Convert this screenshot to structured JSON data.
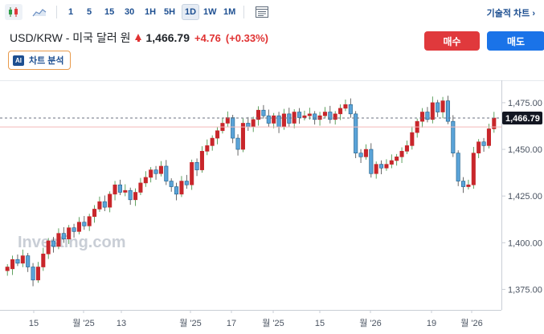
{
  "toolbar": {
    "icons": [
      "candlestick-chart-icon",
      "area-chart-icon",
      "indicators-panel-icon"
    ],
    "intervals": [
      "1",
      "5",
      "15",
      "30",
      "1H",
      "5H",
      "1D",
      "1W",
      "1M"
    ],
    "active_interval": "1D",
    "tech_chart_label": "기술적 차트 ›"
  },
  "header": {
    "pair": "USD/KRW - 미국 달러 원",
    "price": "1,466.79",
    "change": "+4.76",
    "change_pct": "(+0.33%)",
    "change_direction_icon": "up-arrow-icon"
  },
  "actions": {
    "buy_label": "매수",
    "sell_label": "매도"
  },
  "analysis": {
    "badge": "AI",
    "label": "차트 분석"
  },
  "colors": {
    "up": "#d42a2a",
    "down": "#1d5f8a",
    "accent": "#1a73e8",
    "buy": "#e0393c",
    "price_tag": "#131722"
  },
  "watermark": "Investing.com",
  "chart_data": {
    "type": "candlestick",
    "y_ticks": [
      "1,475.00",
      "1,450.00",
      "1,425.00",
      "1,400.00",
      "1,375.00"
    ],
    "y_tick_values": [
      1475,
      1450,
      1425,
      1400,
      1375
    ],
    "ylim": [
      1364,
      1487
    ],
    "x_ticks": [
      "15",
      "월 '25",
      "13",
      "월 '25",
      "17",
      "월 '25",
      "15",
      "월 '26",
      "19",
      "월 '26"
    ],
    "current_price_label": "1,466.79",
    "current_price": 1466.79,
    "reference_price": 1462.0,
    "candles": [
      [
        1385,
        1387
      ],
      [
        1386,
        1391
      ],
      [
        1391,
        1389
      ],
      [
        1389,
        1393
      ],
      [
        1393,
        1387
      ],
      [
        1387,
        1380
      ],
      [
        1380,
        1387
      ],
      [
        1387,
        1394
      ],
      [
        1394,
        1401
      ],
      [
        1401,
        1398
      ],
      [
        1398,
        1405
      ],
      [
        1405,
        1402
      ],
      [
        1402,
        1408
      ],
      [
        1408,
        1406
      ],
      [
        1406,
        1411
      ],
      [
        1411,
        1409
      ],
      [
        1409,
        1414
      ],
      [
        1414,
        1418
      ],
      [
        1418,
        1422
      ],
      [
        1422,
        1419
      ],
      [
        1419,
        1426
      ],
      [
        1426,
        1431
      ],
      [
        1431,
        1427
      ],
      [
        1427,
        1428
      ],
      [
        1428,
        1423
      ],
      [
        1423,
        1427
      ],
      [
        1427,
        1432
      ],
      [
        1432,
        1435
      ],
      [
        1435,
        1439
      ],
      [
        1439,
        1437
      ],
      [
        1437,
        1441
      ],
      [
        1441,
        1433
      ],
      [
        1433,
        1430
      ],
      [
        1430,
        1426
      ],
      [
        1426,
        1433
      ],
      [
        1433,
        1431
      ],
      [
        1431,
        1443
      ],
      [
        1443,
        1439
      ],
      [
        1439,
        1449
      ],
      [
        1449,
        1452
      ],
      [
        1452,
        1456
      ],
      [
        1456,
        1460
      ],
      [
        1460,
        1464
      ],
      [
        1464,
        1467
      ],
      [
        1467,
        1456
      ],
      [
        1456,
        1450
      ],
      [
        1450,
        1464
      ],
      [
        1464,
        1462
      ],
      [
        1462,
        1466
      ],
      [
        1466,
        1471
      ],
      [
        1471,
        1468
      ],
      [
        1468,
        1464
      ],
      [
        1464,
        1468
      ],
      [
        1468,
        1462
      ],
      [
        1462,
        1469
      ],
      [
        1469,
        1464
      ],
      [
        1464,
        1470
      ],
      [
        1470,
        1467
      ],
      [
        1467,
        1468
      ],
      [
        1468,
        1469
      ],
      [
        1469,
        1466
      ],
      [
        1466,
        1468
      ],
      [
        1468,
        1470
      ],
      [
        1470,
        1466
      ],
      [
        1466,
        1469
      ],
      [
        1469,
        1472
      ],
      [
        1472,
        1474
      ],
      [
        1474,
        1469
      ],
      [
        1469,
        1448
      ],
      [
        1448,
        1446
      ],
      [
        1446,
        1450
      ],
      [
        1450,
        1437
      ],
      [
        1437,
        1442
      ],
      [
        1442,
        1440
      ],
      [
        1440,
        1442
      ],
      [
        1442,
        1444
      ],
      [
        1444,
        1446
      ],
      [
        1446,
        1449
      ],
      [
        1449,
        1452
      ],
      [
        1452,
        1459
      ],
      [
        1459,
        1465
      ],
      [
        1465,
        1470
      ],
      [
        1470,
        1466
      ],
      [
        1466,
        1475
      ],
      [
        1475,
        1470
      ],
      [
        1470,
        1476
      ],
      [
        1476,
        1465
      ],
      [
        1465,
        1448
      ],
      [
        1448,
        1433
      ],
      [
        1433,
        1430
      ],
      [
        1430,
        1431
      ],
      [
        1431,
        1448
      ],
      [
        1448,
        1454
      ],
      [
        1454,
        1452
      ],
      [
        1452,
        1461
      ],
      [
        1461,
        1466.79
      ]
    ]
  }
}
